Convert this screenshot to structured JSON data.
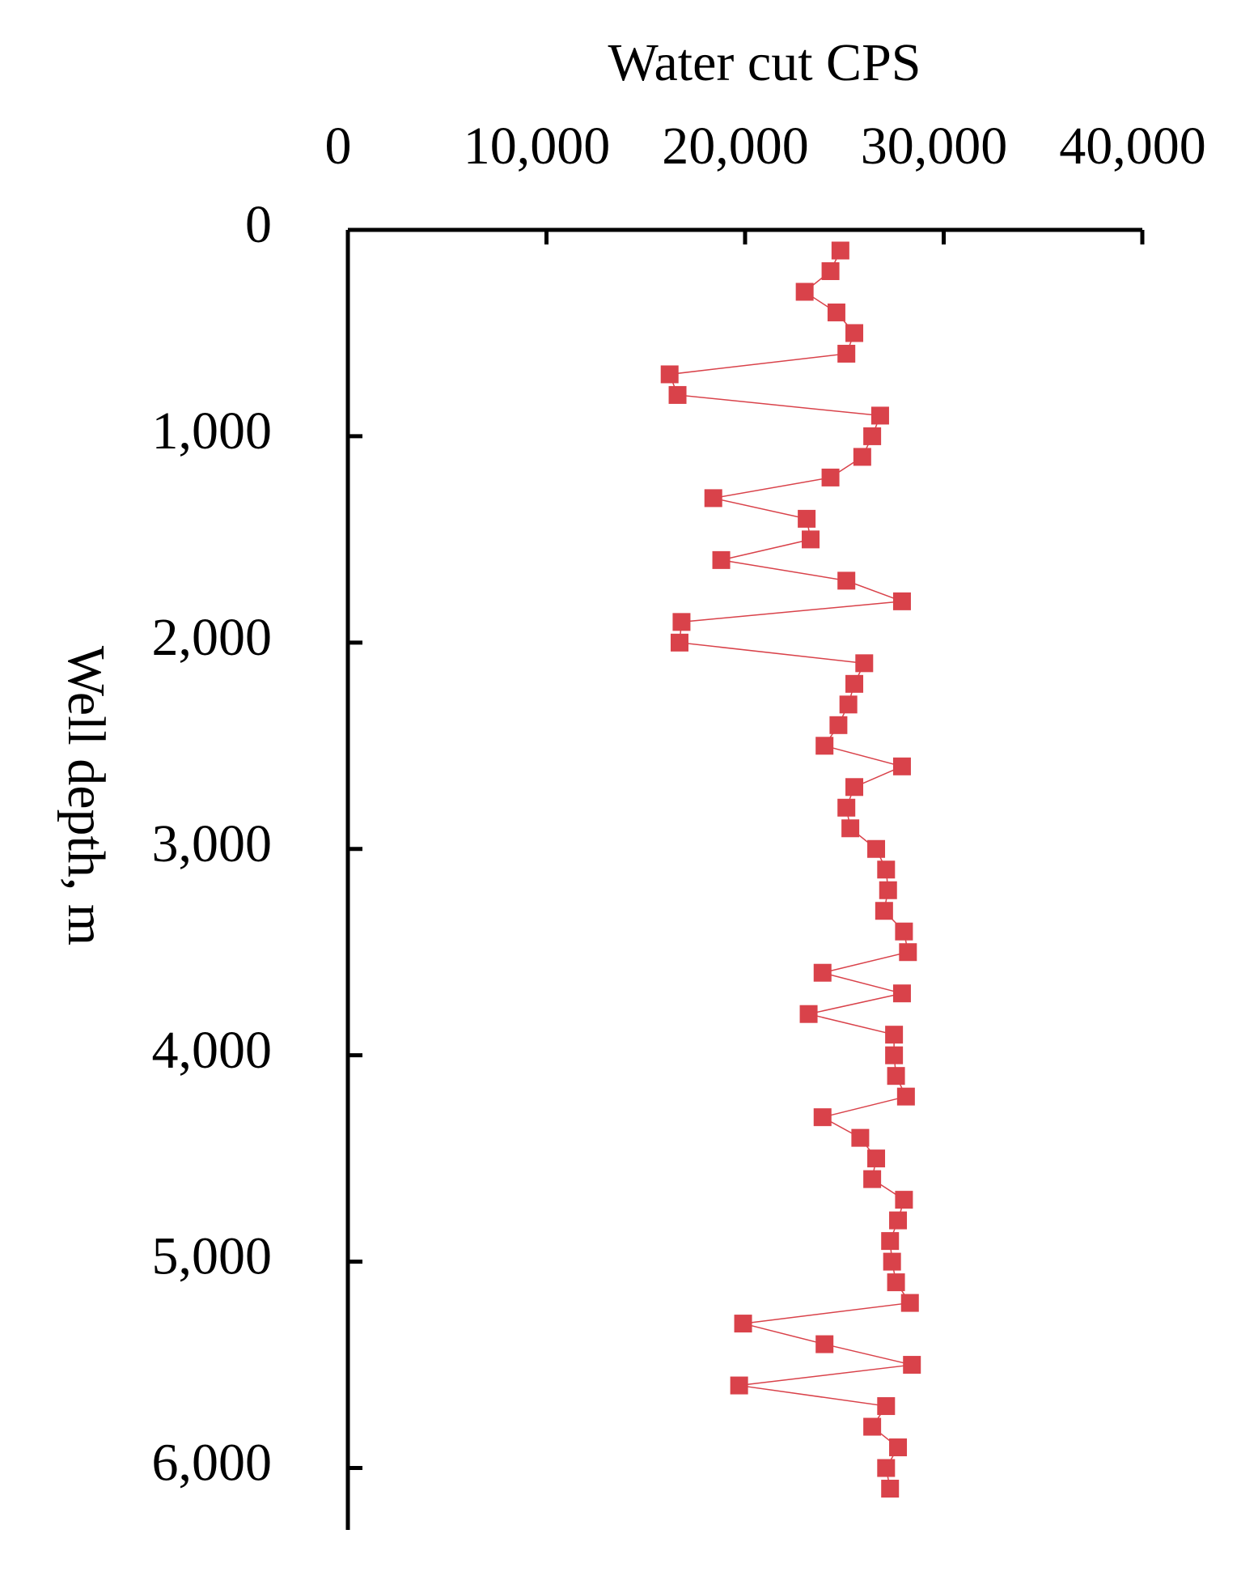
{
  "chart_data": {
    "type": "line",
    "title": "Water cut CPS",
    "y_label": "Well depth, m",
    "color": "#d9424a",
    "x": [
      24800,
      24300,
      23000,
      24600,
      25500,
      25100,
      16200,
      16600,
      26800,
      26400,
      25900,
      24300,
      18400,
      23100,
      23300,
      18800,
      25100,
      27900,
      16800,
      16700,
      26000,
      25500,
      25200,
      24700,
      24000,
      27900,
      25500,
      25100,
      25300,
      26600,
      27100,
      27200,
      27000,
      28000,
      28200,
      23900,
      27900,
      23200,
      27500,
      27500,
      27600,
      28100,
      23900,
      25800,
      26600,
      26400,
      28000,
      27700,
      27300,
      27400,
      27600,
      28300,
      19900,
      24000,
      28400,
      19700,
      27100,
      26400,
      27700,
      27100,
      27300
    ],
    "y": [
      100,
      200,
      300,
      400,
      500,
      600,
      700,
      800,
      900,
      1000,
      1100,
      1200,
      1300,
      1400,
      1500,
      1600,
      1700,
      1800,
      1900,
      2000,
      2100,
      2200,
      2300,
      2400,
      2500,
      2600,
      2700,
      2800,
      2900,
      3000,
      3100,
      3200,
      3300,
      3400,
      3500,
      3600,
      3700,
      3800,
      3900,
      4000,
      4100,
      4200,
      4300,
      4400,
      4500,
      4600,
      4700,
      4800,
      4900,
      5000,
      5100,
      5200,
      5300,
      5400,
      5500,
      5600,
      5700,
      5800,
      5900,
      6000,
      6100
    ],
    "xlim": [
      0,
      40000
    ],
    "xticks": [
      0,
      {
        "value": 10000,
        "label": "10,000"
      },
      {
        "value": 20000,
        "label": "20,000"
      },
      {
        "value": 30000,
        "label": "30,000"
      },
      {
        "value": 40000,
        "label": "40,000"
      }
    ],
    "ylim": [
      0,
      6300
    ],
    "yticks": [
      0,
      {
        "value": 1000,
        "label": "1,000"
      },
      {
        "value": 2000,
        "label": "2,000"
      },
      {
        "value": 3000,
        "label": "3,000"
      },
      {
        "value": 4000,
        "label": "4,000"
      },
      {
        "value": 5000,
        "label": "5,000"
      },
      {
        "value": 6000,
        "label": "6,000"
      }
    ],
    "x_axis_position": "top",
    "y_inverted": true
  }
}
